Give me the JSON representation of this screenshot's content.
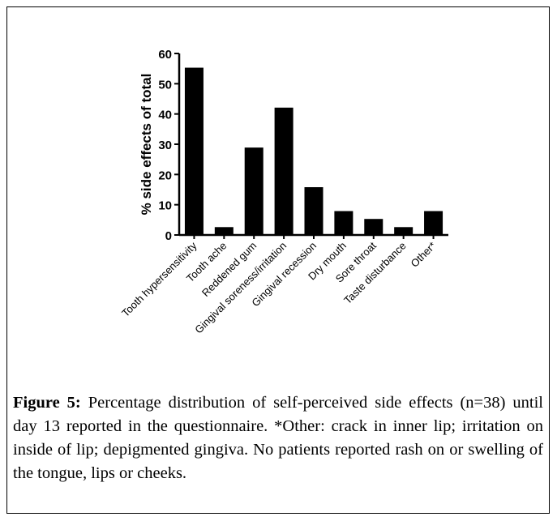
{
  "chart_data": {
    "type": "bar",
    "categories": [
      "Tooth hypersensitivity",
      "Tooth ache",
      "Reddened gum",
      "Gingival soreness/irritation",
      "Gingival recession",
      "Dry mouth",
      "Sore throat",
      "Taste disturbance",
      "Other*"
    ],
    "values": [
      55.3,
      2.6,
      28.9,
      42.1,
      15.8,
      7.9,
      5.3,
      2.6,
      7.9
    ],
    "ylabel": "% side effects of total",
    "xlabel": "",
    "ylim": [
      0,
      60
    ],
    "yticks": [
      0,
      10,
      20,
      30,
      40,
      50,
      60
    ],
    "bar_color": "#000000"
  },
  "caption": {
    "label": "Figure 5:",
    "text": " Percentage distribution of self-perceived side effects (n=38) until day 13 reported in the questionnaire. *Other: crack in inner lip; irritation on inside of lip; depigmented gingiva. No patients reported rash on or swelling of the tongue, lips or cheeks."
  }
}
